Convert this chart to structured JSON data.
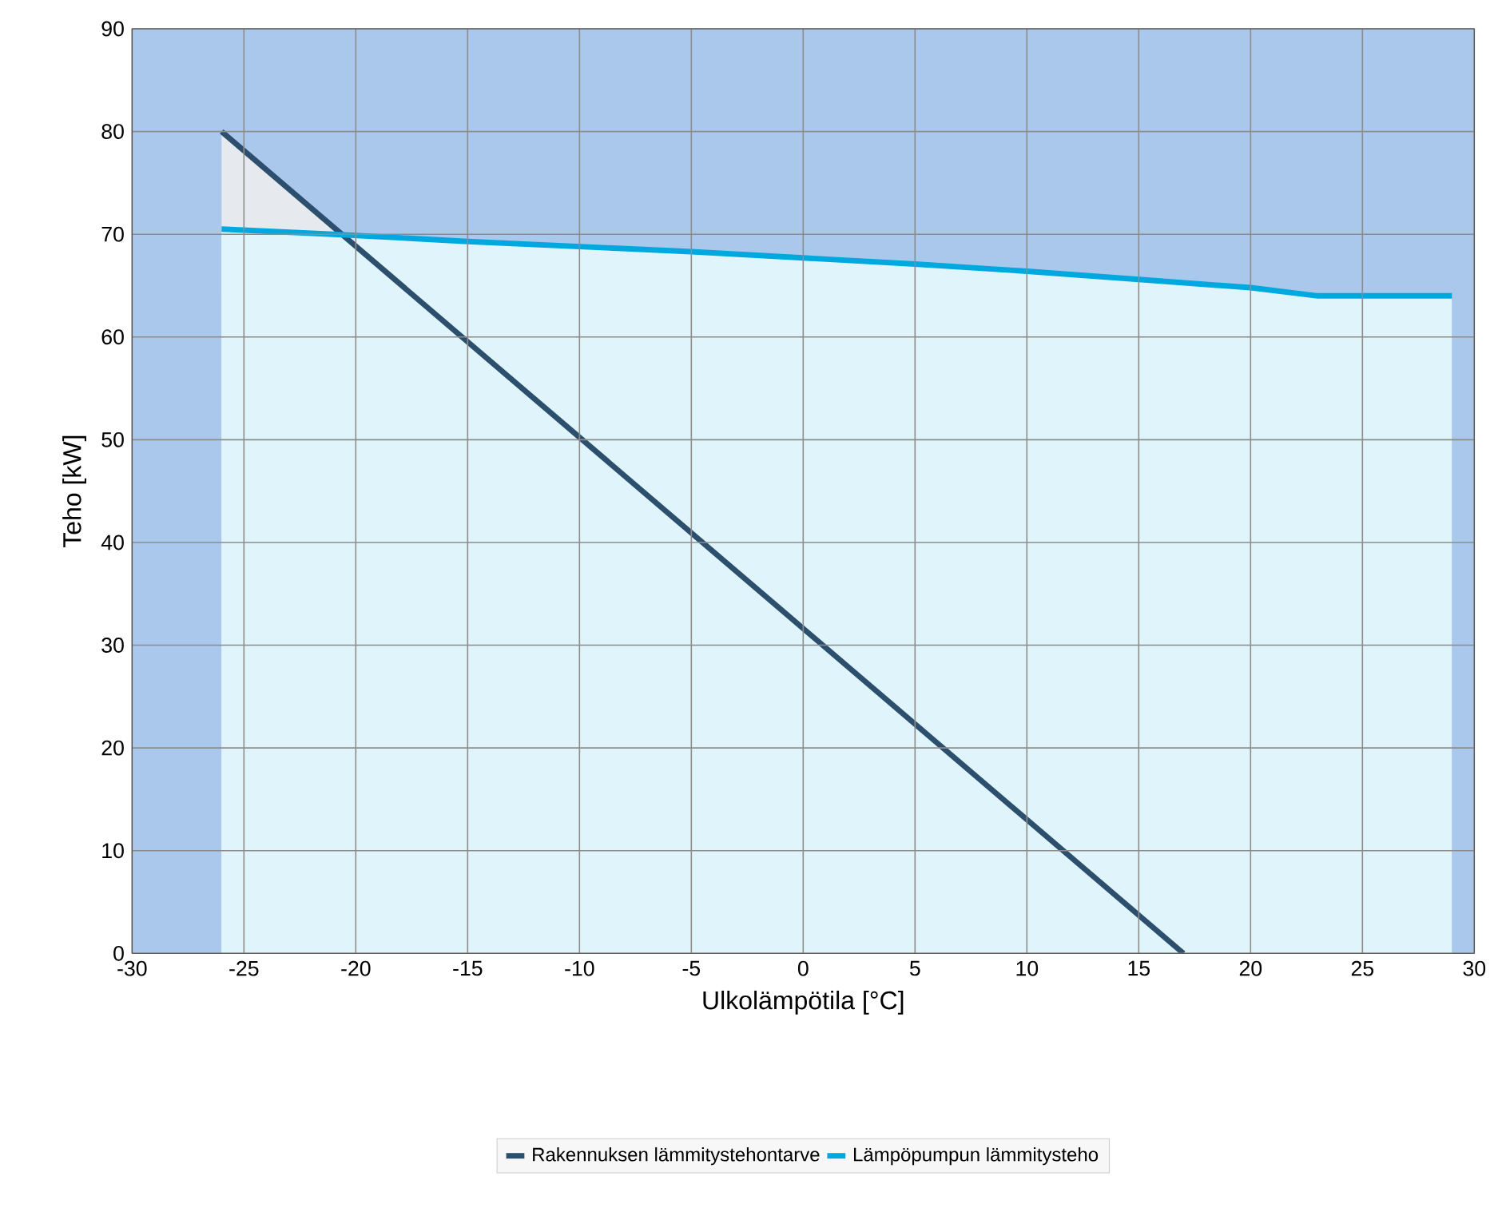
{
  "chart_data": {
    "type": "area",
    "xlabel": "Ulkolämpötila [°C]",
    "ylabel": "Teho [kW]",
    "xlim": [
      -30,
      30
    ],
    "xticks": [
      -30,
      -25,
      -20,
      -15,
      -10,
      -5,
      0,
      5,
      10,
      15,
      20,
      25,
      30
    ],
    "ylim": [
      0,
      90
    ],
    "yticks": [
      0,
      10,
      20,
      30,
      40,
      50,
      60,
      70,
      80,
      90
    ],
    "grid": true,
    "legend": "bottom",
    "bands": [
      {
        "axis": "x",
        "from": -30,
        "to": 30,
        "color": "#a9c8ec"
      }
    ],
    "series": [
      {
        "name": "Rakennuksen lämmitystehontarve",
        "color": "#2d4f6e",
        "x": [
          -26,
          17
        ],
        "values": [
          80,
          0
        ]
      },
      {
        "name": "Lämpöpumpun lämmitysteho",
        "color": "#00a8e0",
        "x": [
          -26,
          -21,
          -15,
          -10,
          -5,
          0,
          5,
          10,
          15,
          20,
          23,
          29
        ],
        "values": [
          70.5,
          70,
          69.3,
          68.8,
          68.3,
          67.7,
          67.1,
          66.4,
          65.6,
          64.8,
          64,
          64
        ]
      }
    ]
  }
}
